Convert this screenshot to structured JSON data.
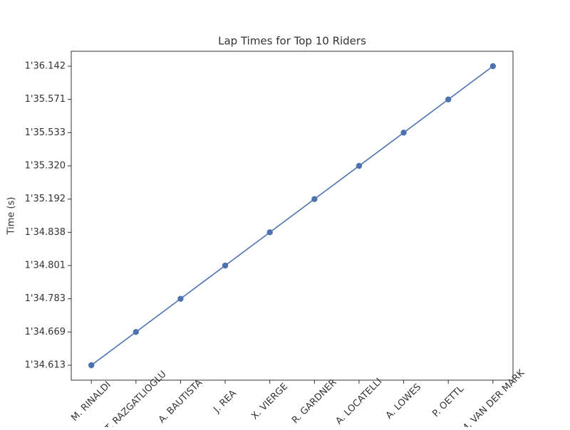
{
  "chart_data": {
    "type": "line",
    "title": "Lap Times for Top 10 Riders",
    "y_label": "Time (s)",
    "categories": [
      "M. RINALDI",
      "T. RAZGATLIOGLU",
      "A. BAUTISTA",
      "J. REA",
      "X. VIERGE",
      "R. GARDNER",
      "A. LOCATELLI",
      "A. LOWES",
      "P. OETTL",
      "M. VAN DER MARK"
    ],
    "series": [
      {
        "name": "Lap time",
        "color": "#4c72b0",
        "values": [
          0,
          1,
          2,
          3,
          4,
          5,
          6,
          7,
          8,
          9
        ]
      }
    ],
    "ylim": [
      -0.45,
      9.45
    ],
    "yticks": [
      {
        "value": 0,
        "label": "1'34.613"
      },
      {
        "value": 1,
        "label": "1'34.669"
      },
      {
        "value": 2,
        "label": "1'34.783"
      },
      {
        "value": 3,
        "label": "1'34.801"
      },
      {
        "value": 4,
        "label": "1'34.838"
      },
      {
        "value": 5,
        "label": "1'35.192"
      },
      {
        "value": 6,
        "label": "1'35.320"
      },
      {
        "value": 7,
        "label": "1'35.533"
      },
      {
        "value": 8,
        "label": "1'35.571"
      },
      {
        "value": 9,
        "label": "1'36.142"
      }
    ],
    "grid": false
  }
}
